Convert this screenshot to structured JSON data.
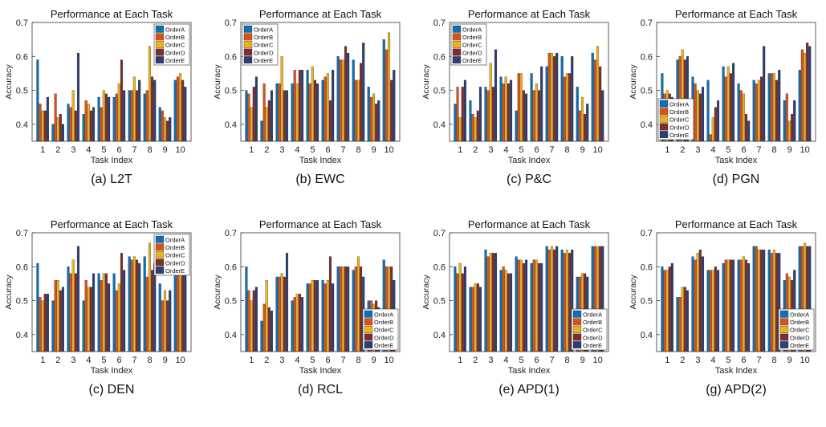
{
  "colors": {
    "OrderA": "#0e6fb4",
    "OrderB": "#d8531a",
    "OrderC": "#ecb11f",
    "OrderD": "#7d2d30",
    "OrderE": "#2f3e72"
  },
  "chart_data": [
    {
      "type": "bar",
      "panel": "(a) L2T",
      "title": "Performance at Each Task",
      "xlabel": "Task Index",
      "ylabel": "Accuracy",
      "ylim": [
        0.35,
        0.7
      ],
      "yticks": [
        "0.4",
        "0.5",
        "0.6",
        "0.7"
      ],
      "categories": [
        "1",
        "2",
        "3",
        "4",
        "5",
        "6",
        "7",
        "8",
        "9",
        "10"
      ],
      "legend": "top-right",
      "series": [
        {
          "name": "OrderA",
          "values": [
            0.59,
            0.4,
            0.46,
            0.43,
            0.48,
            0.48,
            0.5,
            0.49,
            0.45,
            0.53
          ]
        },
        {
          "name": "OrderB",
          "values": [
            0.46,
            0.49,
            0.45,
            0.47,
            0.45,
            0.49,
            0.5,
            0.5,
            0.44,
            0.54
          ]
        },
        {
          "name": "OrderC",
          "values": [
            0.44,
            0.42,
            0.5,
            0.46,
            0.5,
            0.52,
            0.54,
            0.63,
            0.42,
            0.55
          ]
        },
        {
          "name": "OrderD",
          "values": [
            0.44,
            0.43,
            0.44,
            0.44,
            0.49,
            0.59,
            0.5,
            0.54,
            0.41,
            0.53
          ]
        },
        {
          "name": "OrderE",
          "values": [
            0.48,
            0.4,
            0.61,
            0.45,
            0.48,
            0.5,
            0.53,
            0.53,
            0.42,
            0.51
          ]
        }
      ]
    },
    {
      "type": "bar",
      "panel": "(b) EWC",
      "title": "Performance at Each Task",
      "xlabel": "Task Index",
      "ylabel": "Accuracy",
      "ylim": [
        0.35,
        0.7
      ],
      "yticks": [
        "0.4",
        "0.5",
        "0.6",
        "0.7"
      ],
      "categories": [
        "1",
        "2",
        "3",
        "4",
        "5",
        "6",
        "7",
        "8",
        "9",
        "10"
      ],
      "legend": "top-left",
      "series": [
        {
          "name": "OrderA",
          "values": [
            0.5,
            0.41,
            0.52,
            0.52,
            0.56,
            0.53,
            0.6,
            0.59,
            0.51,
            0.65
          ]
        },
        {
          "name": "OrderB",
          "values": [
            0.49,
            0.52,
            0.52,
            0.56,
            0.52,
            0.54,
            0.59,
            0.53,
            0.48,
            0.62
          ]
        },
        {
          "name": "OrderC",
          "values": [
            0.45,
            0.45,
            0.6,
            0.52,
            0.57,
            0.55,
            0.59,
            0.53,
            0.49,
            0.67
          ]
        },
        {
          "name": "OrderD",
          "values": [
            0.51,
            0.47,
            0.5,
            0.56,
            0.53,
            0.47,
            0.63,
            0.58,
            0.46,
            0.53
          ]
        },
        {
          "name": "OrderE",
          "values": [
            0.54,
            0.5,
            0.5,
            0.56,
            0.52,
            0.56,
            0.61,
            0.64,
            0.47,
            0.56
          ]
        }
      ]
    },
    {
      "type": "bar",
      "panel": "(c) P&C",
      "title": "Performance at Each Task",
      "xlabel": "Task Index",
      "ylabel": "Accuracy",
      "ylim": [
        0.35,
        0.7
      ],
      "yticks": [
        "0.4",
        "0.5",
        "0.6",
        "0.7"
      ],
      "categories": [
        "1",
        "2",
        "3",
        "4",
        "5",
        "6",
        "7",
        "8",
        "9",
        "10"
      ],
      "legend": "top-left",
      "series": [
        {
          "name": "OrderA",
          "values": [
            0.46,
            0.47,
            0.51,
            0.54,
            0.44,
            0.55,
            0.57,
            0.6,
            0.51,
            0.61
          ]
        },
        {
          "name": "OrderB",
          "values": [
            0.51,
            0.43,
            0.5,
            0.52,
            0.55,
            0.5,
            0.61,
            0.54,
            0.44,
            0.59
          ]
        },
        {
          "name": "OrderC",
          "values": [
            0.42,
            0.42,
            0.58,
            0.54,
            0.55,
            0.52,
            0.61,
            0.55,
            0.48,
            0.63
          ]
        },
        {
          "name": "OrderD",
          "values": [
            0.51,
            0.44,
            0.51,
            0.52,
            0.5,
            0.5,
            0.6,
            0.55,
            0.43,
            0.57
          ]
        },
        {
          "name": "OrderE",
          "values": [
            0.53,
            0.51,
            0.62,
            0.53,
            0.49,
            0.57,
            0.61,
            0.6,
            0.46,
            0.5
          ]
        }
      ]
    },
    {
      "type": "bar",
      "panel": "(d) PGN",
      "title": "Performance at Each Task",
      "xlabel": "Task Index",
      "ylabel": "Accuracy",
      "ylim": [
        0.35,
        0.7
      ],
      "yticks": [
        "0.4",
        "0.5",
        "0.6",
        "0.7"
      ],
      "categories": [
        "1",
        "2",
        "3",
        "4",
        "5",
        "6",
        "7",
        "8",
        "9",
        "10"
      ],
      "legend": "bottom-left",
      "series": [
        {
          "name": "OrderA",
          "values": [
            0.55,
            0.59,
            0.54,
            0.53,
            0.57,
            0.52,
            0.53,
            0.55,
            0.47,
            0.56
          ]
        },
        {
          "name": "OrderB",
          "values": [
            0.49,
            0.6,
            0.52,
            0.37,
            0.54,
            0.5,
            0.52,
            0.55,
            0.49,
            0.62
          ]
        },
        {
          "name": "OrderC",
          "values": [
            0.5,
            0.62,
            0.5,
            0.42,
            0.57,
            0.49,
            0.53,
            0.55,
            0.41,
            0.61
          ]
        },
        {
          "name": "OrderD",
          "values": [
            0.49,
            0.59,
            0.49,
            0.45,
            0.55,
            0.43,
            0.54,
            0.53,
            0.43,
            0.64
          ]
        },
        {
          "name": "OrderE",
          "values": [
            0.48,
            0.6,
            0.51,
            0.47,
            0.58,
            0.41,
            0.63,
            0.56,
            0.47,
            0.63
          ]
        }
      ]
    },
    {
      "type": "bar",
      "panel": "(c) DEN",
      "title": "Performance at Each Task",
      "xlabel": "Task Index",
      "ylabel": "Accuracy",
      "ylim": [
        0.35,
        0.7
      ],
      "yticks": [
        "0.4",
        "0.5",
        "0.6",
        "0.7"
      ],
      "categories": [
        "1",
        "2",
        "3",
        "4",
        "5",
        "6",
        "7",
        "8",
        "9",
        "10"
      ],
      "legend": "top-right",
      "series": [
        {
          "name": "OrderA",
          "values": [
            0.61,
            0.5,
            0.6,
            0.5,
            0.58,
            0.58,
            0.63,
            0.63,
            0.55,
            0.66
          ]
        },
        {
          "name": "OrderB",
          "values": [
            0.51,
            0.56,
            0.58,
            0.56,
            0.56,
            0.53,
            0.62,
            0.57,
            0.5,
            0.62
          ]
        },
        {
          "name": "OrderC",
          "values": [
            0.5,
            0.56,
            0.62,
            0.54,
            0.58,
            0.55,
            0.63,
            0.67,
            0.53,
            0.65
          ]
        },
        {
          "name": "OrderD",
          "values": [
            0.52,
            0.53,
            0.58,
            0.54,
            0.58,
            0.64,
            0.62,
            0.59,
            0.5,
            0.61
          ]
        },
        {
          "name": "OrderE",
          "values": [
            0.52,
            0.54,
            0.66,
            0.58,
            0.55,
            0.59,
            0.61,
            0.61,
            0.53,
            0.6
          ]
        }
      ]
    },
    {
      "type": "bar",
      "panel": "(d) RCL",
      "title": "Performance at Each Task",
      "xlabel": "Task Index",
      "ylabel": "Accuracy",
      "ylim": [
        0.35,
        0.7
      ],
      "yticks": [
        "0.4",
        "0.5",
        "0.6",
        "0.7"
      ],
      "categories": [
        "1",
        "2",
        "3",
        "4",
        "5",
        "6",
        "7",
        "8",
        "9",
        "10"
      ],
      "legend": "bottom-right",
      "series": [
        {
          "name": "OrderA",
          "values": [
            0.6,
            0.44,
            0.57,
            0.5,
            0.55,
            0.56,
            0.6,
            0.59,
            0.5,
            0.62
          ]
        },
        {
          "name": "OrderB",
          "values": [
            0.53,
            0.49,
            0.57,
            0.51,
            0.55,
            0.55,
            0.6,
            0.6,
            0.5,
            0.6
          ]
        },
        {
          "name": "OrderC",
          "values": [
            0.5,
            0.56,
            0.58,
            0.52,
            0.56,
            0.56,
            0.6,
            0.63,
            0.49,
            0.6
          ]
        },
        {
          "name": "OrderD",
          "values": [
            0.53,
            0.48,
            0.57,
            0.52,
            0.56,
            0.63,
            0.6,
            0.6,
            0.5,
            0.6
          ]
        },
        {
          "name": "OrderE",
          "values": [
            0.54,
            0.47,
            0.64,
            0.51,
            0.56,
            0.55,
            0.6,
            0.57,
            0.48,
            0.56
          ]
        }
      ]
    },
    {
      "type": "bar",
      "panel": "(e) APD(1)",
      "title": "Performance at Each Task",
      "xlabel": "Task Index",
      "ylabel": "Accuracy",
      "ylim": [
        0.35,
        0.7
      ],
      "yticks": [
        "0.4",
        "0.5",
        "0.6",
        "0.7"
      ],
      "categories": [
        "1",
        "2",
        "3",
        "4",
        "5",
        "6",
        "7",
        "8",
        "9",
        "10"
      ],
      "legend": "bottom-right",
      "series": [
        {
          "name": "OrderA",
          "values": [
            0.6,
            0.54,
            0.65,
            0.59,
            0.63,
            0.61,
            0.66,
            0.65,
            0.57,
            0.66
          ]
        },
        {
          "name": "OrderB",
          "values": [
            0.58,
            0.54,
            0.63,
            0.6,
            0.62,
            0.62,
            0.65,
            0.64,
            0.57,
            0.66
          ]
        },
        {
          "name": "OrderC",
          "values": [
            0.61,
            0.55,
            0.64,
            0.59,
            0.62,
            0.62,
            0.66,
            0.65,
            0.58,
            0.66
          ]
        },
        {
          "name": "OrderD",
          "values": [
            0.58,
            0.55,
            0.64,
            0.58,
            0.61,
            0.61,
            0.65,
            0.64,
            0.58,
            0.66
          ]
        },
        {
          "name": "OrderE",
          "values": [
            0.6,
            0.54,
            0.64,
            0.58,
            0.62,
            0.61,
            0.66,
            0.65,
            0.57,
            0.66
          ]
        }
      ]
    },
    {
      "type": "bar",
      "panel": "(g) APD(2)",
      "title": "Performance at Each Task",
      "xlabel": "Task Index",
      "ylabel": "Accuracy",
      "ylim": [
        0.35,
        0.7
      ],
      "yticks": [
        "0.4",
        "0.5",
        "0.6",
        "0.7"
      ],
      "categories": [
        "1",
        "2",
        "3",
        "4",
        "5",
        "6",
        "7",
        "8",
        "9",
        "10"
      ],
      "legend": "bottom-right",
      "series": [
        {
          "name": "OrderA",
          "values": [
            0.6,
            0.51,
            0.63,
            0.59,
            0.61,
            0.62,
            0.66,
            0.65,
            0.56,
            0.66
          ]
        },
        {
          "name": "OrderB",
          "values": [
            0.59,
            0.51,
            0.62,
            0.59,
            0.62,
            0.62,
            0.66,
            0.64,
            0.58,
            0.66
          ]
        },
        {
          "name": "OrderC",
          "values": [
            0.59,
            0.54,
            0.64,
            0.59,
            0.62,
            0.63,
            0.65,
            0.65,
            0.57,
            0.67
          ]
        },
        {
          "name": "OrderD",
          "values": [
            0.6,
            0.54,
            0.65,
            0.6,
            0.62,
            0.62,
            0.65,
            0.64,
            0.56,
            0.66
          ]
        },
        {
          "name": "OrderE",
          "values": [
            0.61,
            0.53,
            0.63,
            0.59,
            0.62,
            0.61,
            0.65,
            0.64,
            0.59,
            0.66
          ]
        }
      ]
    }
  ]
}
